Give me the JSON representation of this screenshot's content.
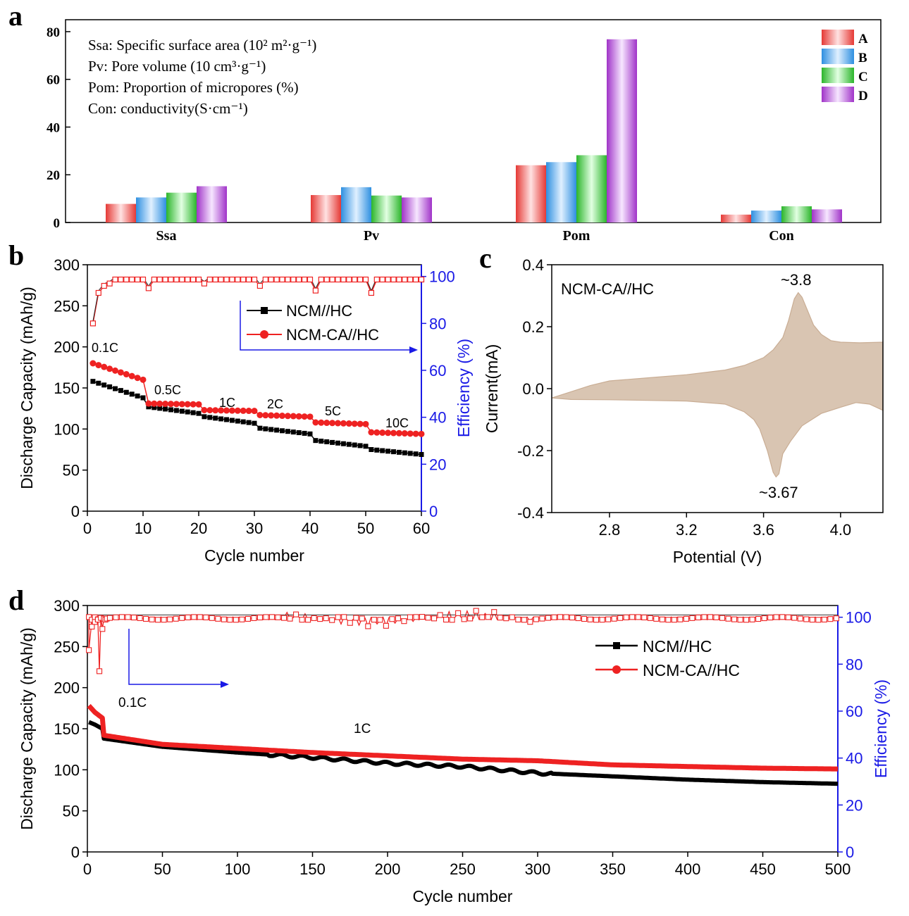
{
  "chart_data": [
    {
      "panel": "a",
      "type": "bar",
      "categories": [
        "Ssa",
        "Pv",
        "Pom",
        "Con"
      ],
      "series": [
        {
          "name": "A",
          "color": "#e53935",
          "values": [
            7.8,
            11.5,
            24,
            3.3
          ]
        },
        {
          "name": "B",
          "color": "#2e8fe0",
          "values": [
            10.5,
            14.8,
            25.3,
            5
          ]
        },
        {
          "name": "C",
          "color": "#2bb52b",
          "values": [
            12.5,
            11.3,
            28.2,
            6.8
          ]
        },
        {
          "name": "D",
          "color": "#a033c8",
          "values": [
            15.2,
            10.5,
            76.8,
            5.5
          ]
        }
      ],
      "ylim": [
        0,
        85
      ],
      "yticks": [
        0,
        20,
        40,
        60,
        80
      ],
      "notes": [
        "Ssa: Specific surface area (10² m²·g⁻¹)",
        "Pv: Pore volume (10 cm³·g⁻¹)",
        "Pom: Proportion of micropores (%)",
        "Con: conductivity(S·cm⁻¹)"
      ]
    },
    {
      "panel": "b",
      "type": "scatter",
      "xlabel": "Cycle number",
      "ylabel": "Discharge Capacity (mAh/g)",
      "y2label": "Efficiency (%)",
      "xlim": [
        0,
        60
      ],
      "ylim": [
        0,
        300
      ],
      "y2lim": [
        0,
        105
      ],
      "xticks": [
        0,
        10,
        20,
        30,
        40,
        50,
        60
      ],
      "yticks": [
        0,
        50,
        100,
        150,
        200,
        250,
        300
      ],
      "y2ticks": [
        0,
        20,
        40,
        60,
        80,
        100
      ],
      "legend": [
        "NCM//HC",
        "NCM-CA//HC"
      ],
      "rate_labels": [
        "0.1C",
        "0.5C",
        "1C",
        "2C",
        "5C",
        "10C"
      ],
      "capacity_segments": [
        {
          "name": "NCM//HC",
          "color": "#000000",
          "segments": [
            [
              1,
              10,
              158,
              138
            ],
            [
              11,
              20,
              127,
              119
            ],
            [
              21,
              30,
              115,
              107
            ],
            [
              31,
              40,
              101,
              94
            ],
            [
              41,
              50,
              86,
              79
            ],
            [
              51,
              60,
              75,
              69
            ]
          ]
        },
        {
          "name": "NCM-CA//HC",
          "color": "#ee2222",
          "segments": [
            [
              1,
              10,
              180,
              160
            ],
            [
              11,
              20,
              131,
              130
            ],
            [
              21,
              30,
              123,
              122
            ],
            [
              31,
              40,
              117,
              115
            ],
            [
              41,
              50,
              108,
              106
            ],
            [
              51,
              60,
              96,
              94
            ]
          ]
        }
      ],
      "efficiency": {
        "start": [
          80,
          93,
          96,
          97
        ],
        "plateau": 98.7,
        "dips": [
          [
            11,
            95
          ],
          [
            21,
            97
          ],
          [
            31,
            96
          ],
          [
            41,
            94
          ],
          [
            51,
            93
          ]
        ]
      }
    },
    {
      "panel": "c",
      "type": "area",
      "label": "NCM-CA//HC",
      "xlabel": "Potential (V)",
      "ylabel": "Current(mA)",
      "xlim": [
        2.5,
        4.22
      ],
      "ylim": [
        -0.4,
        0.4
      ],
      "xticks": [
        2.8,
        3.2,
        3.6,
        4.0
      ],
      "yticks": [
        -0.4,
        -0.2,
        0.0,
        0.2,
        0.4
      ],
      "annotations": [
        "~3.8",
        "~3.67"
      ],
      "upper": [
        [
          2.5,
          -0.03
        ],
        [
          2.6,
          -0.01
        ],
        [
          2.7,
          0.01
        ],
        [
          2.8,
          0.025
        ],
        [
          3.0,
          0.035
        ],
        [
          3.2,
          0.045
        ],
        [
          3.4,
          0.06
        ],
        [
          3.5,
          0.075
        ],
        [
          3.6,
          0.1
        ],
        [
          3.65,
          0.125
        ],
        [
          3.7,
          0.165
        ],
        [
          3.73,
          0.22
        ],
        [
          3.76,
          0.29
        ],
        [
          3.78,
          0.31
        ],
        [
          3.8,
          0.295
        ],
        [
          3.83,
          0.25
        ],
        [
          3.86,
          0.205
        ],
        [
          3.9,
          0.175
        ],
        [
          3.95,
          0.155
        ],
        [
          4.0,
          0.15
        ],
        [
          4.1,
          0.148
        ],
        [
          4.22,
          0.15
        ]
      ],
      "lower": [
        [
          4.22,
          -0.07
        ],
        [
          4.15,
          -0.05
        ],
        [
          4.08,
          -0.045
        ],
        [
          4.0,
          -0.06
        ],
        [
          3.9,
          -0.08
        ],
        [
          3.8,
          -0.12
        ],
        [
          3.74,
          -0.17
        ],
        [
          3.7,
          -0.21
        ],
        [
          3.68,
          -0.275
        ],
        [
          3.665,
          -0.285
        ],
        [
          3.65,
          -0.27
        ],
        [
          3.62,
          -0.2
        ],
        [
          3.58,
          -0.13
        ],
        [
          3.55,
          -0.1
        ],
        [
          3.5,
          -0.075
        ],
        [
          3.4,
          -0.05
        ],
        [
          3.2,
          -0.04
        ],
        [
          3.0,
          -0.038
        ],
        [
          2.8,
          -0.036
        ],
        [
          2.6,
          -0.035
        ],
        [
          2.5,
          -0.03
        ]
      ]
    },
    {
      "panel": "d",
      "type": "scatter",
      "xlabel": "Cycle number",
      "ylabel": "Discharge Capacity (mAh/g)",
      "y2label": "Efficiency (%)",
      "xlim": [
        0,
        500
      ],
      "ylim": [
        0,
        300
      ],
      "y2lim": [
        0,
        105
      ],
      "xticks": [
        0,
        50,
        100,
        150,
        200,
        250,
        300,
        350,
        400,
        450,
        500
      ],
      "yticks": [
        0,
        50,
        100,
        150,
        200,
        250,
        300
      ],
      "y2ticks": [
        0,
        20,
        40,
        60,
        80,
        100
      ],
      "legend": [
        "NCM//HC",
        "NCM-CA//HC"
      ],
      "rate_labels": [
        "0.1C",
        "1C"
      ],
      "capacity": [
        {
          "name": "NCM//HC",
          "color": "#000000",
          "points": [
            [
              1,
              158
            ],
            [
              5,
              155
            ],
            [
              10,
              150
            ],
            [
              11,
              138
            ],
            [
              50,
              128
            ],
            [
              100,
              121
            ],
            [
              150,
              115
            ],
            [
              200,
              108
            ],
            [
              250,
              104
            ],
            [
              300,
              96
            ],
            [
              350,
              92
            ],
            [
              400,
              88
            ],
            [
              450,
              85
            ],
            [
              500,
              83
            ]
          ]
        },
        {
          "name": "NCM-CA//HC",
          "color": "#ee2222",
          "points": [
            [
              1,
              178
            ],
            [
              5,
              170
            ],
            [
              10,
              163
            ],
            [
              11,
              142
            ],
            [
              50,
              131
            ],
            [
              100,
              126
            ],
            [
              150,
              121
            ],
            [
              200,
              117
            ],
            [
              250,
              113
            ],
            [
              300,
              111
            ],
            [
              350,
              106
            ],
            [
              400,
              104
            ],
            [
              450,
              102
            ],
            [
              500,
              101
            ]
          ]
        }
      ],
      "efficiency": {
        "plateau": 99.5,
        "early": [
          [
            1,
            86
          ],
          [
            3,
            96
          ],
          [
            5,
            98
          ],
          [
            7,
            99
          ],
          [
            8,
            77
          ],
          [
            10,
            95
          ],
          [
            12,
            99
          ]
        ]
      }
    }
  ],
  "panel_labels": {
    "a": "a",
    "b": "b",
    "c": "c",
    "d": "d"
  },
  "colors": {
    "black": "#000000",
    "red": "#ee2222",
    "blue": "#1a1ae6",
    "fill_c": "#d9c5b2",
    "fill_c_line": "#c9ad94"
  }
}
